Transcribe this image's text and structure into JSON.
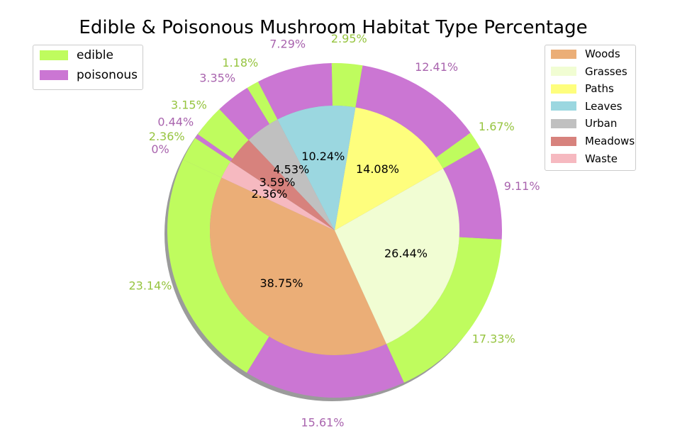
{
  "chart_data": {
    "type": "pie",
    "title": "Edible & Poisonous Mushroom Habitat Type Percentage",
    "inner": {
      "categories": [
        "Woods",
        "Grasses",
        "Paths",
        "Leaves",
        "Urban",
        "Meadows",
        "Waste"
      ],
      "values": [
        38.75,
        26.44,
        14.08,
        10.24,
        4.53,
        3.59,
        2.36
      ],
      "labels": [
        "38.75%",
        "26.44%",
        "14.08%",
        "10.24%",
        "4.53%",
        "3.59%",
        "2.36%"
      ],
      "colors": [
        "#EBAE77",
        "#F1FDD3",
        "#FEFE7D",
        "#9BD7E0",
        "#C0C0C0",
        "#D7827D",
        "#F6B9C0"
      ]
    },
    "outer": {
      "segments": [
        {
          "habitat": "Woods",
          "class": "edible",
          "value": 23.14,
          "label": "23.14%"
        },
        {
          "habitat": "Woods",
          "class": "poisonous",
          "value": 15.61,
          "label": "15.61%"
        },
        {
          "habitat": "Grasses",
          "class": "edible",
          "value": 17.33,
          "label": "17.33%"
        },
        {
          "habitat": "Grasses",
          "class": "poisonous",
          "value": 9.11,
          "label": "9.11%"
        },
        {
          "habitat": "Paths",
          "class": "edible",
          "value": 1.67,
          "label": "1.67%"
        },
        {
          "habitat": "Paths",
          "class": "poisonous",
          "value": 12.41,
          "label": "12.41%"
        },
        {
          "habitat": "Leaves",
          "class": "edible",
          "value": 2.95,
          "label": "2.95%"
        },
        {
          "habitat": "Leaves",
          "class": "poisonous",
          "value": 7.29,
          "label": "7.29%"
        },
        {
          "habitat": "Urban",
          "class": "edible",
          "value": 1.18,
          "label": "1.18%"
        },
        {
          "habitat": "Urban",
          "class": "poisonous",
          "value": 3.35,
          "label": "3.35%"
        },
        {
          "habitat": "Meadows",
          "class": "edible",
          "value": 3.15,
          "label": "3.15%"
        },
        {
          "habitat": "Meadows",
          "class": "poisonous",
          "value": 0.44,
          "label": "0.44%"
        },
        {
          "habitat": "Waste",
          "class": "edible",
          "value": 2.36,
          "label": "2.36%"
        },
        {
          "habitat": "Waste",
          "class": "poisonous",
          "value": 0,
          "label": "0%"
        }
      ],
      "class_colors": {
        "edible": "#BFFC5E",
        "poisonous": "#CB76D3"
      },
      "label_colors": {
        "edible": "#96C43F",
        "poisonous": "#A964AE"
      }
    },
    "legends": [
      {
        "placement": "upper-left",
        "entries": [
          {
            "label": "edible",
            "color": "#BFFC5E"
          },
          {
            "label": "poisonous",
            "color": "#CB76D3"
          }
        ]
      },
      {
        "placement": "upper-right",
        "entries": [
          {
            "label": "Woods",
            "color": "#EBAE77"
          },
          {
            "label": "Grasses",
            "color": "#F1FDD3"
          },
          {
            "label": "Paths",
            "color": "#FEFE7D"
          },
          {
            "label": "Leaves",
            "color": "#9BD7E0"
          },
          {
            "label": "Urban",
            "color": "#C0C0C0"
          },
          {
            "label": "Meadows",
            "color": "#D7827D"
          },
          {
            "label": "Waste",
            "color": "#F6B9C0"
          }
        ]
      }
    ]
  }
}
